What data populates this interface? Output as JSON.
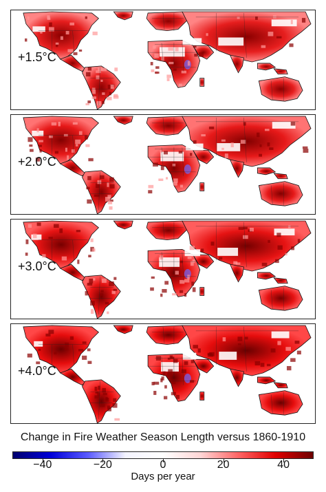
{
  "panels": [
    {
      "label": "+1.5°C",
      "intensity": 0.35
    },
    {
      "label": "+2.0°C",
      "intensity": 0.5
    },
    {
      "label": "+3.0°C",
      "intensity": 0.7
    },
    {
      "label": "+4.0°C",
      "intensity": 0.9
    }
  ],
  "title": "Change in Fire Weather Season Length versus 1860-1910",
  "colorbar": {
    "label": "Days per year",
    "min": -50,
    "max": 50,
    "ticks": [
      {
        "value": -40,
        "text": "−40"
      },
      {
        "value": -20,
        "text": "−20"
      },
      {
        "value": 0,
        "text": "0"
      },
      {
        "value": 20,
        "text": "20"
      },
      {
        "value": 40,
        "text": "40"
      }
    ],
    "colors": [
      "#00006e",
      "#0000d8",
      "#5a5aff",
      "#f4f4ff",
      "#ffffff",
      "#ffd6d6",
      "#ff6666",
      "#e00000",
      "#6e0000"
    ]
  }
}
